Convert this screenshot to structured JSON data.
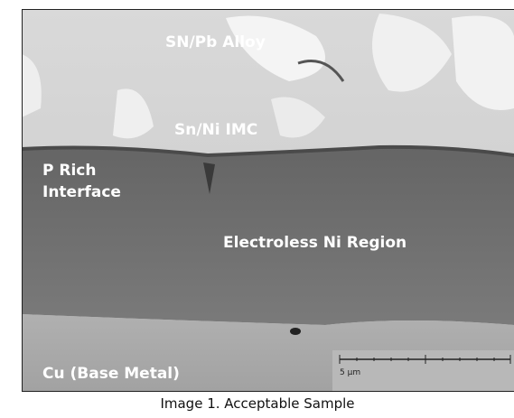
{
  "labels": {
    "alloy": "SN/Pb Alloy",
    "imc": "Sn/Ni IMC",
    "interface": [
      "P Rich",
      "Interface"
    ],
    "ni_region": "Electroless Ni Region",
    "cu": "Cu (Base Metal)"
  },
  "scale_bar": "5 µm",
  "caption": "Image 1. Acceptable Sample"
}
